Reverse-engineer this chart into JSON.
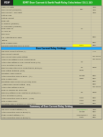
{
  "title": "IDMT Over Current & Earth Fault Relay Calculation (14.1.14)",
  "title_bg": "#22aa22",
  "title_fg": "#ffffff",
  "bg_color": "#cfc9a8",
  "sections": [
    {
      "header": null,
      "header_bg": null,
      "header_fg": null,
      "rows": [
        {
          "label": "Load / CT Ratio",
          "col1": "",
          "col2": "Amp"
        },
        {
          "label": "Over Current (Line/Line)",
          "col1": "300",
          "col2": "Amp"
        },
        {
          "label": "Over Current - Line Limit",
          "col1": "",
          "col2": "Amp"
        },
        {
          "label": "Setting Type",
          "col1": "",
          "col2": ""
        },
        {
          "label": "Setting Current",
          "col1": "",
          "col2": ""
        },
        {
          "label": "Relay Set",
          "col1": "",
          "col2": ""
        },
        {
          "label": "CT Primary (nominal)",
          "col1": "",
          "col2": ""
        },
        {
          "label": "CT Secondary (nominal)",
          "col1": "",
          "col2": ""
        },
        {
          "label": "Relay IDMT Ps",
          "col1": "0.7",
          "col2": ""
        },
        {
          "label": "CT IDMT Ps",
          "col1": "",
          "col2": ""
        },
        {
          "label": "Time Dial",
          "col1": "",
          "col2": ""
        },
        {
          "label": "T.M. Instantaneous Time",
          "col1": "",
          "col2": "Secs"
        },
        {
          "label": "Setting",
          "col1": "",
          "col2": ""
        },
        {
          "label": "Total Grading Time",
          "col1": "",
          "col2": "Secs"
        },
        {
          "label": "Required Operating Time of Relay",
          "col1": "0.277",
          "col2": "Secs",
          "highlight": "#ffff00"
        }
      ]
    },
    {
      "header": "Over Current Relay Settings",
      "header_bg": "#22aaff",
      "header_fg": "#000000",
      "rows": [
        {
          "label": "Life Time Current Settings (A):",
          "col1": "",
          "col2": "A %"
        },
        {
          "label": "Over Current Current",
          "col1": "",
          "col2": ""
        },
        {
          "label": "Over Current Relay/Plug Setting",
          "col1": "",
          "col2": "110-15-5%"
        },
        {
          "label": "Actual Plug Setting of Over Current Relay",
          "col1": "",
          "col2": "110-15-5%"
        },
        {
          "label": "Actual Step Setting of Over Current Relay (TAP)",
          "col1": "0.9",
          "col2": ""
        },
        {
          "label": "Curve Selection for Relay",
          "col1": "",
          "col2": ""
        },
        {
          "label": "Find the PSM/Actual Over Current Relay (PSM) (x)",
          "col1": "5.9",
          "col2": "Relay"
        },
        {
          "label": "Plug Setting Multiplier (PSM)",
          "col1": "33.56",
          "col2": ""
        },
        {
          "label": "Operation Time of Relay",
          "col1": "",
          "col2": ""
        },
        {
          "label": "Actual Operating Time of Relay - (t+)",
          "col1": "10.288",
          "col2": "Secs"
        },
        {
          "label": "Total Grading Time",
          "col1": "0.888",
          "col2": "Secs"
        },
        {
          "label": "Operating Time of Previous (in-Line) Relay:",
          "col1": "",
          "col2": "Secs"
        },
        {
          "label": "  (Step Down Current Setting - End)",
          "col1": "",
          "col2": "Secs"
        },
        {
          "label": "Actual Step Setting of Relay",
          "col1": "",
          "col2": "110-15-5%"
        },
        {
          "label": "Relay Ps Needed for IDMT PSM",
          "col1": "",
          "col2": ""
        },
        {
          "label": "Find PSM/setting if Over Limit Relay (PSM) (x.x.)",
          "col1": "5.9",
          "col2": "Relay"
        },
        {
          "label": "Curve Selection in (Here)",
          "col1": "",
          "col2": ""
        },
        {
          "label": "Actual Operating Time of Relay - (Here)",
          "col1": "0.000",
          "col2": "Secs"
        },
        {
          "label": "Total Grading Time",
          "col1": "0.000",
          "col2": "Secs"
        },
        {
          "label": "Operating Time & Previous (in-Line) Relay",
          "col1": "0.000",
          "col2": "Secs"
        }
      ]
    },
    {
      "header": "Summary of Over Current Relay Setting",
      "header_bg": "#333333",
      "header_fg": "#ffffff",
      "rows": [
        {
          "label": "Life Over Current Setting (A.1.)",
          "col1": "100/10/200 A",
          "col2": "Amp",
          "col1_color": "#00cc00"
        },
        {
          "label": "Actual Operating Time of Relay(t+)",
          "col1": "10.288",
          "col2": "Secs"
        },
        {
          "label": "Stage Current Setting (A.1.)",
          "col1": "100/10/200 A",
          "col2": "Amp"
        },
        {
          "label": "Actual Operating Time of Relay(t+)",
          "col1": "0.000",
          "col2": "Secs"
        }
      ]
    }
  ]
}
